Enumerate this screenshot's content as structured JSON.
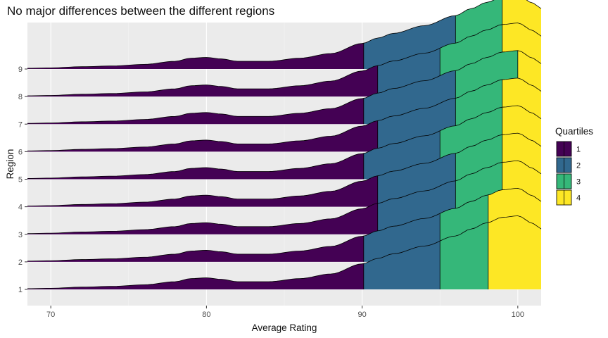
{
  "chart_data": {
    "type": "ridgeline",
    "title": "No major differences between the different regions",
    "xlabel": "Average Rating",
    "ylabel": "Region",
    "xlim": [
      68.5,
      101.5
    ],
    "x_ticks": [
      70,
      80,
      90,
      100
    ],
    "regions": [
      "1",
      "2",
      "3",
      "4",
      "5",
      "6",
      "7",
      "8",
      "9"
    ],
    "legend": {
      "title": "Quartiles",
      "position": "right",
      "entries": [
        {
          "label": "1",
          "color": "#440154"
        },
        {
          "label": "2",
          "color": "#31688E"
        },
        {
          "label": "3",
          "color": "#35B779"
        },
        {
          "label": "4",
          "color": "#FDE725"
        }
      ]
    },
    "quartile_cutoffs": {
      "1": [
        90.1,
        95.0,
        98.1
      ],
      "2": [
        90.1,
        95.0,
        98.1
      ],
      "3": [
        91.0,
        96.0,
        99.0
      ],
      "4": [
        91.0,
        96.0,
        99.0
      ],
      "5": [
        90.1,
        95.0,
        99.0
      ],
      "6": [
        91.0,
        96.0,
        99.0
      ],
      "7": [
        90.1,
        96.0,
        100.0
      ],
      "8": [
        91.0,
        95.0,
        99.0
      ],
      "9": [
        90.1,
        96.0,
        99.0
      ]
    },
    "density_shape": {
      "x": [
        68.5,
        70,
        72,
        74,
        76,
        78,
        79,
        80,
        81,
        82,
        84,
        86,
        88,
        90,
        91,
        92,
        94,
        96,
        97,
        98,
        99,
        100,
        101,
        101.5
      ],
      "relative_height": [
        0.01,
        0.015,
        0.03,
        0.04,
        0.06,
        0.1,
        0.14,
        0.15,
        0.13,
        0.1,
        0.1,
        0.14,
        0.2,
        0.33,
        0.4,
        0.46,
        0.56,
        0.69,
        0.78,
        0.86,
        0.93,
        0.95,
        0.85,
        0.78
      ]
    },
    "grid": true,
    "background": "#EBEBEB"
  }
}
